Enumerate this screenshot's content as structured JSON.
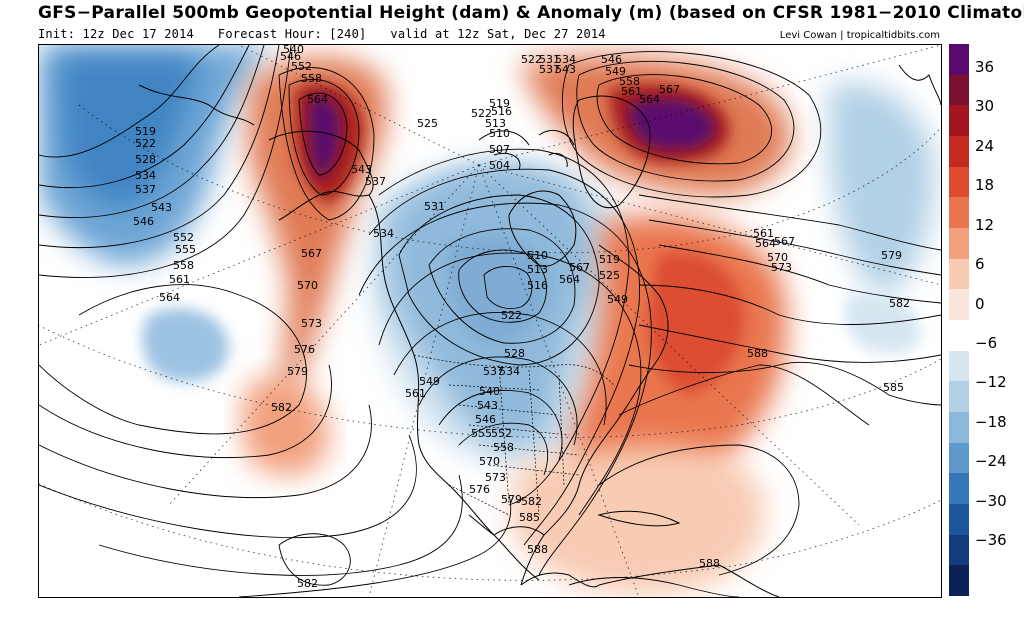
{
  "title": "GFS−Parallel 500mb Geopotential Height (dam) & Anomaly (m) (based on CFSR 1981−2010 Climatology)",
  "init": "Init: 12z Dec 17 2014",
  "forecast_hour": "Forecast Hour: [240]",
  "valid": "valid at 12z Sat, Dec 27 2014",
  "credit": "Levi Cowan | tropicaltidbits.com",
  "colorbar": {
    "labels": [
      "36",
      "30",
      "24",
      "18",
      "12",
      "6",
      "0",
      "−6",
      "−12",
      "−18",
      "−24",
      "−30",
      "−36"
    ],
    "colors": [
      "#5a0a6e",
      "#7a1030",
      "#a3161f",
      "#c42a22",
      "#dc4d30",
      "#e9764e",
      "#f2a07e",
      "#f8cbb3",
      "#fbe6dc",
      "#ffffff",
      "#d6e6f0",
      "#b2d0e6",
      "#8bb7da",
      "#5d98cb",
      "#3577b7",
      "#1b559a",
      "#143b7d",
      "#0b2258"
    ]
  },
  "map": {
    "features": [
      "ridge-alaska",
      "ridge-greenland",
      "ridge-east-us",
      "trough-central-canada",
      "trough-north-pacific",
      "high-atlantic"
    ],
    "contour_labels": [
      {
        "t": "546"
      },
      {
        "t": "552"
      },
      {
        "t": "558"
      },
      {
        "t": "564"
      },
      {
        "t": "540"
      },
      {
        "t": "519"
      },
      {
        "t": "522"
      },
      {
        "t": "528"
      },
      {
        "t": "534"
      },
      {
        "t": "537"
      },
      {
        "t": "543"
      },
      {
        "t": "546"
      },
      {
        "t": "552"
      },
      {
        "t": "555"
      },
      {
        "t": "558"
      },
      {
        "t": "561"
      },
      {
        "t": "564"
      },
      {
        "t": "567"
      },
      {
        "t": "570"
      },
      {
        "t": "573"
      },
      {
        "t": "576"
      },
      {
        "t": "579"
      },
      {
        "t": "582"
      },
      {
        "t": "543"
      },
      {
        "t": "537"
      },
      {
        "t": "525"
      },
      {
        "t": "531"
      },
      {
        "t": "534"
      },
      {
        "t": "522"
      },
      {
        "t": "519"
      },
      {
        "t": "516"
      },
      {
        "t": "513"
      },
      {
        "t": "510"
      },
      {
        "t": "507"
      },
      {
        "t": "504"
      },
      {
        "t": "510"
      },
      {
        "t": "513"
      },
      {
        "t": "516"
      },
      {
        "t": "519"
      },
      {
        "t": "525"
      },
      {
        "t": "522"
      },
      {
        "t": "528"
      },
      {
        "t": "537"
      },
      {
        "t": "534"
      },
      {
        "t": "540"
      },
      {
        "t": "543"
      },
      {
        "t": "546"
      },
      {
        "t": "549"
      },
      {
        "t": "561"
      },
      {
        "t": "555"
      },
      {
        "t": "552"
      },
      {
        "t": "558"
      },
      {
        "t": "567"
      },
      {
        "t": "564"
      },
      {
        "t": "570"
      },
      {
        "t": "573"
      },
      {
        "t": "576"
      },
      {
        "t": "579"
      },
      {
        "t": "582"
      },
      {
        "t": "585"
      },
      {
        "t": "588"
      },
      {
        "t": "549"
      },
      {
        "t": "522"
      },
      {
        "t": "531"
      },
      {
        "t": "534"
      },
      {
        "t": "537"
      },
      {
        "t": "543"
      },
      {
        "t": "546"
      },
      {
        "t": "549"
      },
      {
        "t": "558"
      },
      {
        "t": "561"
      },
      {
        "t": "564"
      },
      {
        "t": "567"
      },
      {
        "t": "561"
      },
      {
        "t": "564"
      },
      {
        "t": "567"
      },
      {
        "t": "570"
      },
      {
        "t": "573"
      },
      {
        "t": "579"
      },
      {
        "t": "582"
      },
      {
        "t": "585"
      },
      {
        "t": "588"
      },
      {
        "t": "588"
      },
      {
        "t": "582"
      }
    ]
  }
}
